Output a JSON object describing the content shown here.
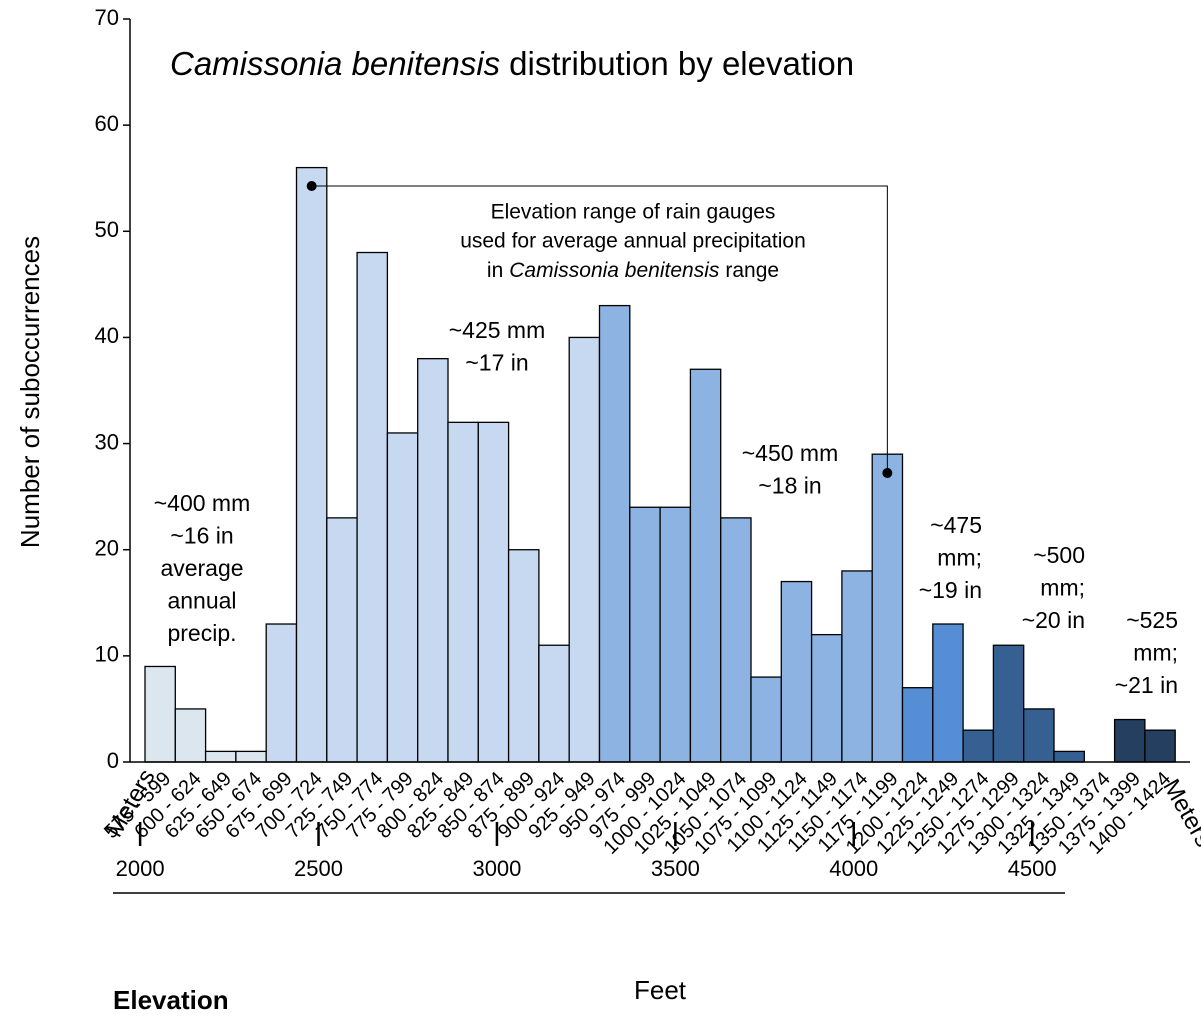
{
  "chart_data": {
    "type": "bar",
    "title": [
      "Camissonia benitensis",
      "distribution by elevation"
    ],
    "ylabel": "Number of suboccurrences",
    "categories": [
      "575 - 599",
      "600 - 624",
      "625 - 649",
      "650 - 674",
      "675 - 699",
      "700 - 724",
      "725 - 749",
      "750 - 774",
      "775 - 799",
      "800 - 824",
      "825 - 849",
      "850 - 874",
      "875 - 899",
      "900 - 924",
      "925 - 949",
      "950 - 974",
      "975 - 999",
      "1000 - 1024",
      "1025 - 1049",
      "1050 - 1074",
      "1075 - 1099",
      "1100 - 1124",
      "1125 - 1149",
      "1150 - 1174",
      "1175 - 1199",
      "1200 - 1224",
      "1225 - 1249",
      "1250 - 1274",
      "1275 - 1299",
      "1300 - 1324",
      "1325 - 1349",
      "1350 - 1374",
      "1375 - 1399",
      "1400 - 1424"
    ],
    "values": [
      9,
      5,
      1,
      1,
      13,
      56,
      23,
      48,
      31,
      38,
      32,
      32,
      20,
      11,
      40,
      43,
      24,
      24,
      37,
      23,
      8,
      17,
      12,
      18,
      29,
      7,
      13,
      3,
      11,
      5,
      1,
      0,
      4,
      3
    ],
    "colors": [
      "#dce6ef",
      "#dce6ef",
      "#dce6ef",
      "#dce6ef",
      "#c6d9f0",
      "#c6d9f0",
      "#c6d9f0",
      "#c6d9f0",
      "#c6d9f0",
      "#c6d9f0",
      "#c6d9f0",
      "#c6d9f0",
      "#c6d9f0",
      "#c6d9f0",
      "#c6d9f0",
      "#8db3e2",
      "#8db3e2",
      "#8db3e2",
      "#8db3e2",
      "#8db3e2",
      "#8db3e2",
      "#8db3e2",
      "#8db3e2",
      "#8db3e2",
      "#8db3e2",
      "#558ed5",
      "#558ed5",
      "#376092",
      "#376092",
      "#376092",
      "#376092",
      "#243f60",
      "#243f60",
      "#243f60"
    ],
    "ylim": [
      0,
      70
    ],
    "yticks": [
      0,
      10,
      20,
      30,
      40,
      50,
      60,
      70
    ],
    "x_unit_labels": [
      "Meters",
      "Meters"
    ],
    "feet_label": "Feet",
    "elevation_label": "Elevation",
    "feet_xlim": [
      1924,
      4592
    ],
    "feet_ticks": [
      2000,
      2500,
      3000,
      3500,
      4000,
      4500
    ],
    "precip_notes": [
      [
        "~400 mm",
        "~16 in",
        "average",
        "annual",
        "precip."
      ],
      [
        "~425 mm",
        "~17 in"
      ],
      [
        "~450 mm",
        "~18 in"
      ],
      [
        "~475",
        "mm;",
        "~19 in"
      ],
      [
        "~500",
        "mm;",
        "~20 in"
      ],
      [
        "~525",
        "mm;",
        "~21 in"
      ]
    ],
    "rain_gauge_note": {
      "lines": [
        "Elevation range of rain gauges",
        "used for average annual precipitation"
      ],
      "last_line": [
        "in",
        "Camissonia benitensis",
        "range"
      ]
    }
  }
}
